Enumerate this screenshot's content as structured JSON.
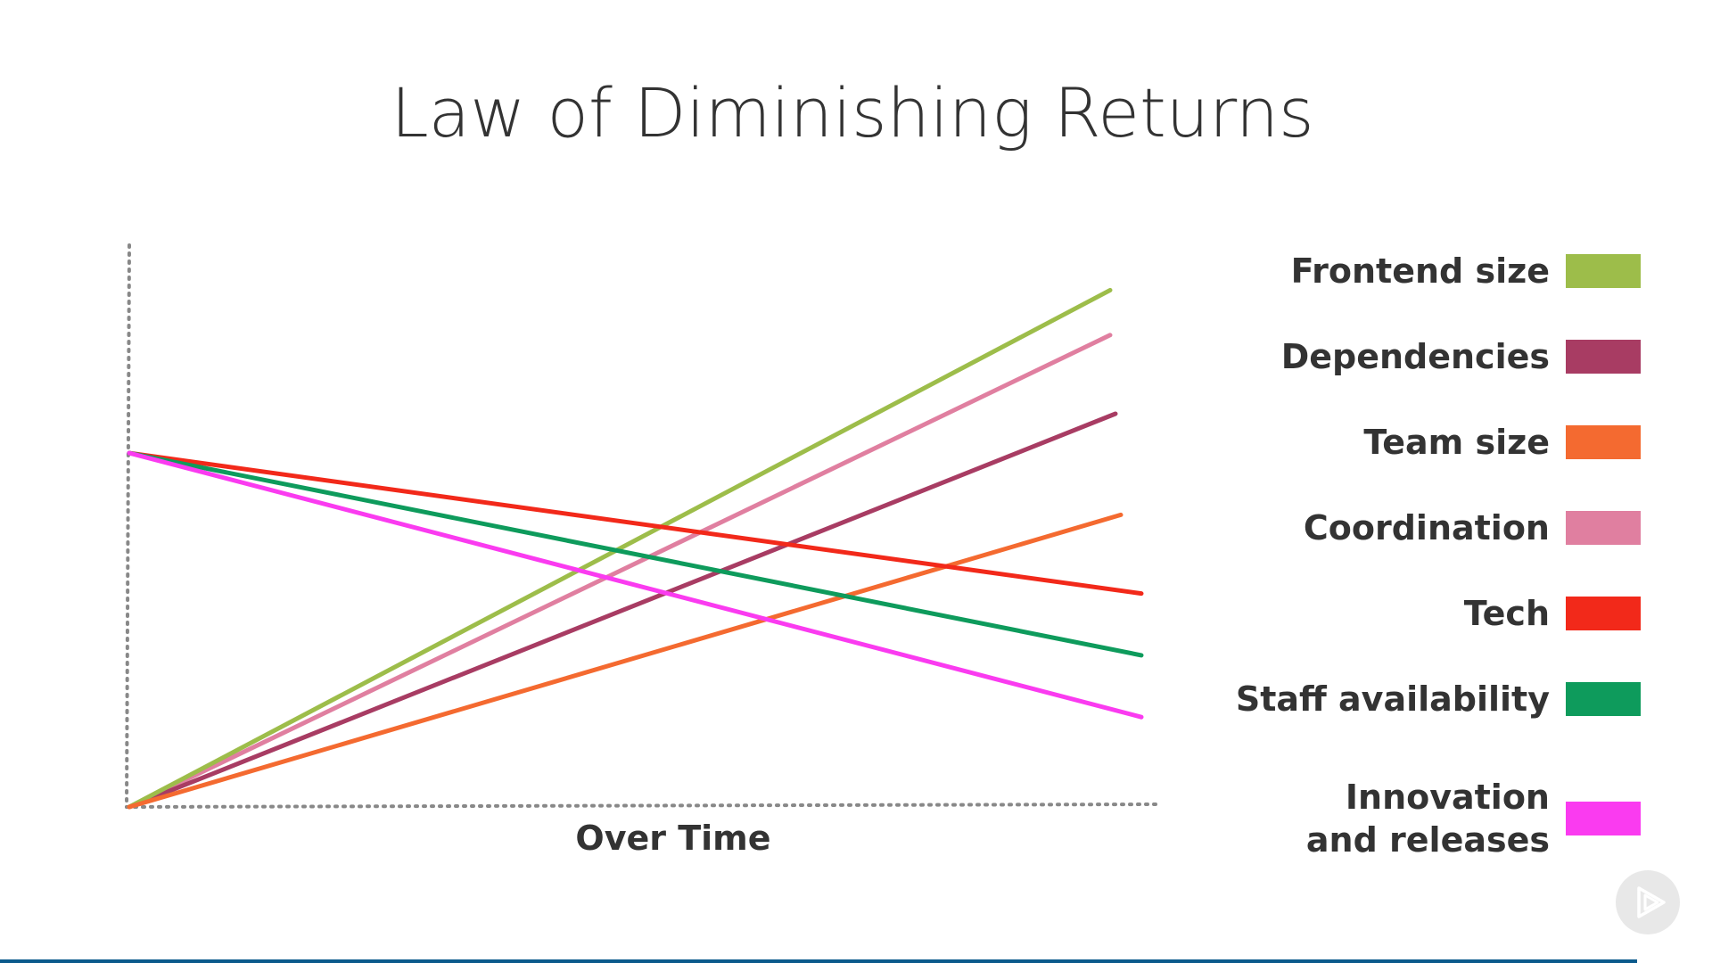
{
  "slide": {
    "title": "Law of Diminishing Returns"
  },
  "colors": {
    "axis": "#888888",
    "text": "#333333",
    "background": "#ffffff",
    "bottom_rule": "#0b5a8c"
  },
  "chart_data": {
    "type": "line",
    "title": "Law of Diminishing Returns",
    "xlabel": "Over Time",
    "ylabel": "",
    "grid": false,
    "legend_placement": "right",
    "x": [
      0,
      1
    ],
    "xlim": [
      0,
      1.05
    ],
    "ylim": [
      0,
      1
    ],
    "series": [
      {
        "name": "Frontend size",
        "color": "#9dbd4a",
        "values": [
          0.0,
          0.92
        ]
      },
      {
        "name": "Dependencies",
        "color": "#a83c63",
        "values": [
          0.0,
          0.7
        ]
      },
      {
        "name": "Team size",
        "color": "#f46a30",
        "values": [
          0.0,
          0.52
        ]
      },
      {
        "name": "Coordination",
        "color": "#e07fa0",
        "values": [
          0.0,
          0.84
        ]
      },
      {
        "name": "Tech",
        "color": "#f2291a",
        "values": [
          0.63,
          0.38
        ]
      },
      {
        "name": "Staff availability",
        "color": "#0e9b5c",
        "values": [
          0.63,
          0.27
        ]
      },
      {
        "name": "Innovation and releases",
        "color": "#fa3bf0",
        "values": [
          0.63,
          0.16
        ]
      }
    ]
  },
  "player": {
    "icon": "play-icon"
  }
}
